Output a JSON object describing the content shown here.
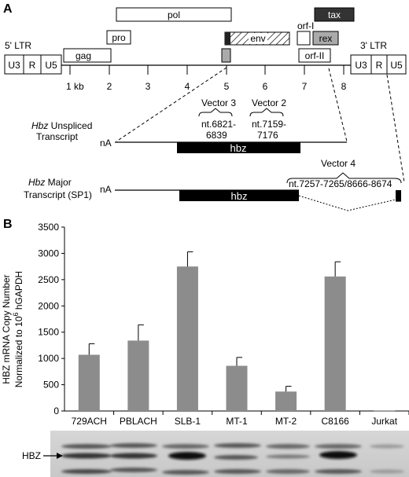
{
  "panel_a": {
    "label": "A",
    "ltr5": "5' LTR",
    "ltr3": "3' LTR",
    "ltr_regions": [
      "U3",
      "R",
      "U5"
    ],
    "genes": {
      "gag": "gag",
      "pro": "pro",
      "pol": "pol",
      "env": "env",
      "tax": "tax",
      "rex": "rex",
      "orf1": "orf-I",
      "orf2": "orf-II"
    },
    "kb_ticks": [
      "1 kb",
      "2",
      "3",
      "4",
      "5",
      "6",
      "7",
      "8"
    ],
    "vectors": {
      "v3_name": "Vector 3",
      "v3_range1": "nt.6821-",
      "v3_range2": "6839",
      "v2_name": "Vector 2",
      "v2_range1": "nt.7159-",
      "v2_range2": "7176",
      "v4_name": "Vector 4",
      "v4_range": "nt.7257-7265/8666-8674"
    },
    "unspliced": {
      "gene_italic": "Hbz",
      "title_rest": " Unspliced",
      "title2": "Transcript",
      "polyA": "nA",
      "gene": "hbz"
    },
    "major": {
      "gene_italic": "Hbz",
      "title_rest": " Major",
      "title2": "Transcript (SP1)",
      "polyA": "nA",
      "gene": "hbz"
    }
  },
  "panel_b": {
    "label": "B",
    "gel_label": "HBZ",
    "chart_data": {
      "type": "bar",
      "categories": [
        "729ACH",
        "PBLACH",
        "SLB-1",
        "MT-1",
        "MT-2",
        "C8166",
        "Jurkat"
      ],
      "values": [
        1070,
        1340,
        2750,
        860,
        370,
        2560,
        5
      ],
      "errors": [
        210,
        300,
        280,
        160,
        100,
        280,
        0
      ],
      "ylabel_line1": "HBZ mRNA Copy Number",
      "ylabel_line2_pre": "Normalized to 10",
      "ylabel_line2_sup": "6",
      "ylabel_line2_post": " hGAPDH",
      "ylim": [
        0,
        3500
      ],
      "yticks": [
        "0",
        "500",
        "1000",
        "1500",
        "2000",
        "2500",
        "3000",
        "3500"
      ],
      "bar_color": "#8c8c8c",
      "grid": false
    }
  }
}
